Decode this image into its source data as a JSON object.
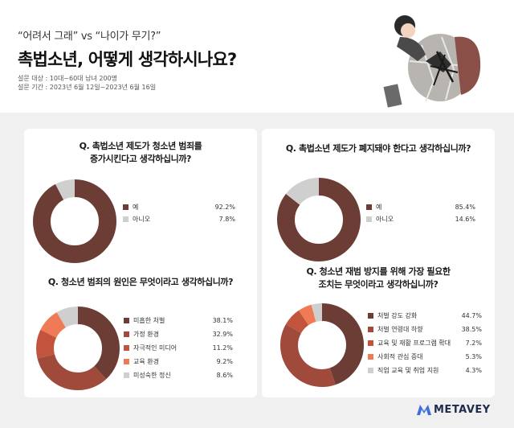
{
  "header": {
    "subtitle": "“어려서 그래” vs “나이가 무기?”",
    "title": "촉법소년, 어떻게 생각하시나요?",
    "meta_target": "설문 대상 : 10대~60대 남녀 200명",
    "meta_period": "설문 기간 : 2023년 6월 12일~2023년 6월 16일"
  },
  "brand": {
    "name": "METAVEY"
  },
  "colors": {
    "dark": "#6b3d35",
    "brown": "#a04a3c",
    "rust": "#c2543d",
    "coral": "#f07a55",
    "gray": "#cfcfcf"
  },
  "chart_data": [
    {
      "type": "pie",
      "donut": true,
      "title": "Q. 촉법소년 제도가 청소년 범죄를 증가시킨다고 생각하십니까?",
      "title_lines": [
        "Q. 촉법소년 제도가 청소년 범죄를",
        "증가시킨다고 생각하십니까?"
      ],
      "categories": [
        "예",
        "아니오"
      ],
      "values": [
        92.2,
        7.8
      ],
      "value_labels": [
        "92.2%",
        "7.8%"
      ],
      "colors": [
        "#6b3d35",
        "#cfcfcf"
      ]
    },
    {
      "type": "pie",
      "donut": true,
      "title": "Q. 촉법소년 제도가 폐지돼야 한다고 생각하십니까?",
      "title_lines": [
        "Q. 촉법소년 제도가 폐지돼야 한다고 생각하십니까?"
      ],
      "categories": [
        "예",
        "아니오"
      ],
      "values": [
        85.4,
        14.6
      ],
      "value_labels": [
        "85.4%",
        "14.6%"
      ],
      "colors": [
        "#6b3d35",
        "#cfcfcf"
      ]
    },
    {
      "type": "pie",
      "donut": true,
      "title": "Q. 청소년 범죄의 원인은 무엇이라고 생각하십니까?",
      "title_lines": [
        "Q. 청소년 범죄의 원인은 무엇이라고 생각하십니까?"
      ],
      "categories": [
        "미흡한 처벌",
        "가정 환경",
        "자극적인 미디어",
        "교육 환경",
        "미성숙한 정신"
      ],
      "values": [
        38.1,
        32.9,
        11.2,
        9.2,
        8.6
      ],
      "value_labels": [
        "38.1%",
        "32.9%",
        "11.2%",
        "9.2%",
        "8.6%"
      ],
      "colors": [
        "#6b3d35",
        "#a04a3c",
        "#c2543d",
        "#f07a55",
        "#cfcfcf"
      ]
    },
    {
      "type": "pie",
      "donut": true,
      "title": "Q. 청소년 재범 방지를 위해 가장 필요한 조치는 무엇이라고 생각하십니까?",
      "title_lines": [
        "Q. 청소년 재범 방지를 위해 가장 필요한",
        "조치는 무엇이라고 생각하십니까?"
      ],
      "categories": [
        "처벌 강도 강화",
        "처벌 연령대 하향",
        "교육 및 재활 프로그램 확대",
        "사회적 관심 증대",
        "직업 교육 및 취업 지원"
      ],
      "values": [
        44.7,
        38.5,
        7.2,
        5.3,
        4.3
      ],
      "value_labels": [
        "44.7%",
        "38.5%",
        "7.2%",
        "5.3%",
        "4.3%"
      ],
      "colors": [
        "#6b3d35",
        "#a04a3c",
        "#c2543d",
        "#f07a55",
        "#cfcfcf"
      ]
    }
  ]
}
